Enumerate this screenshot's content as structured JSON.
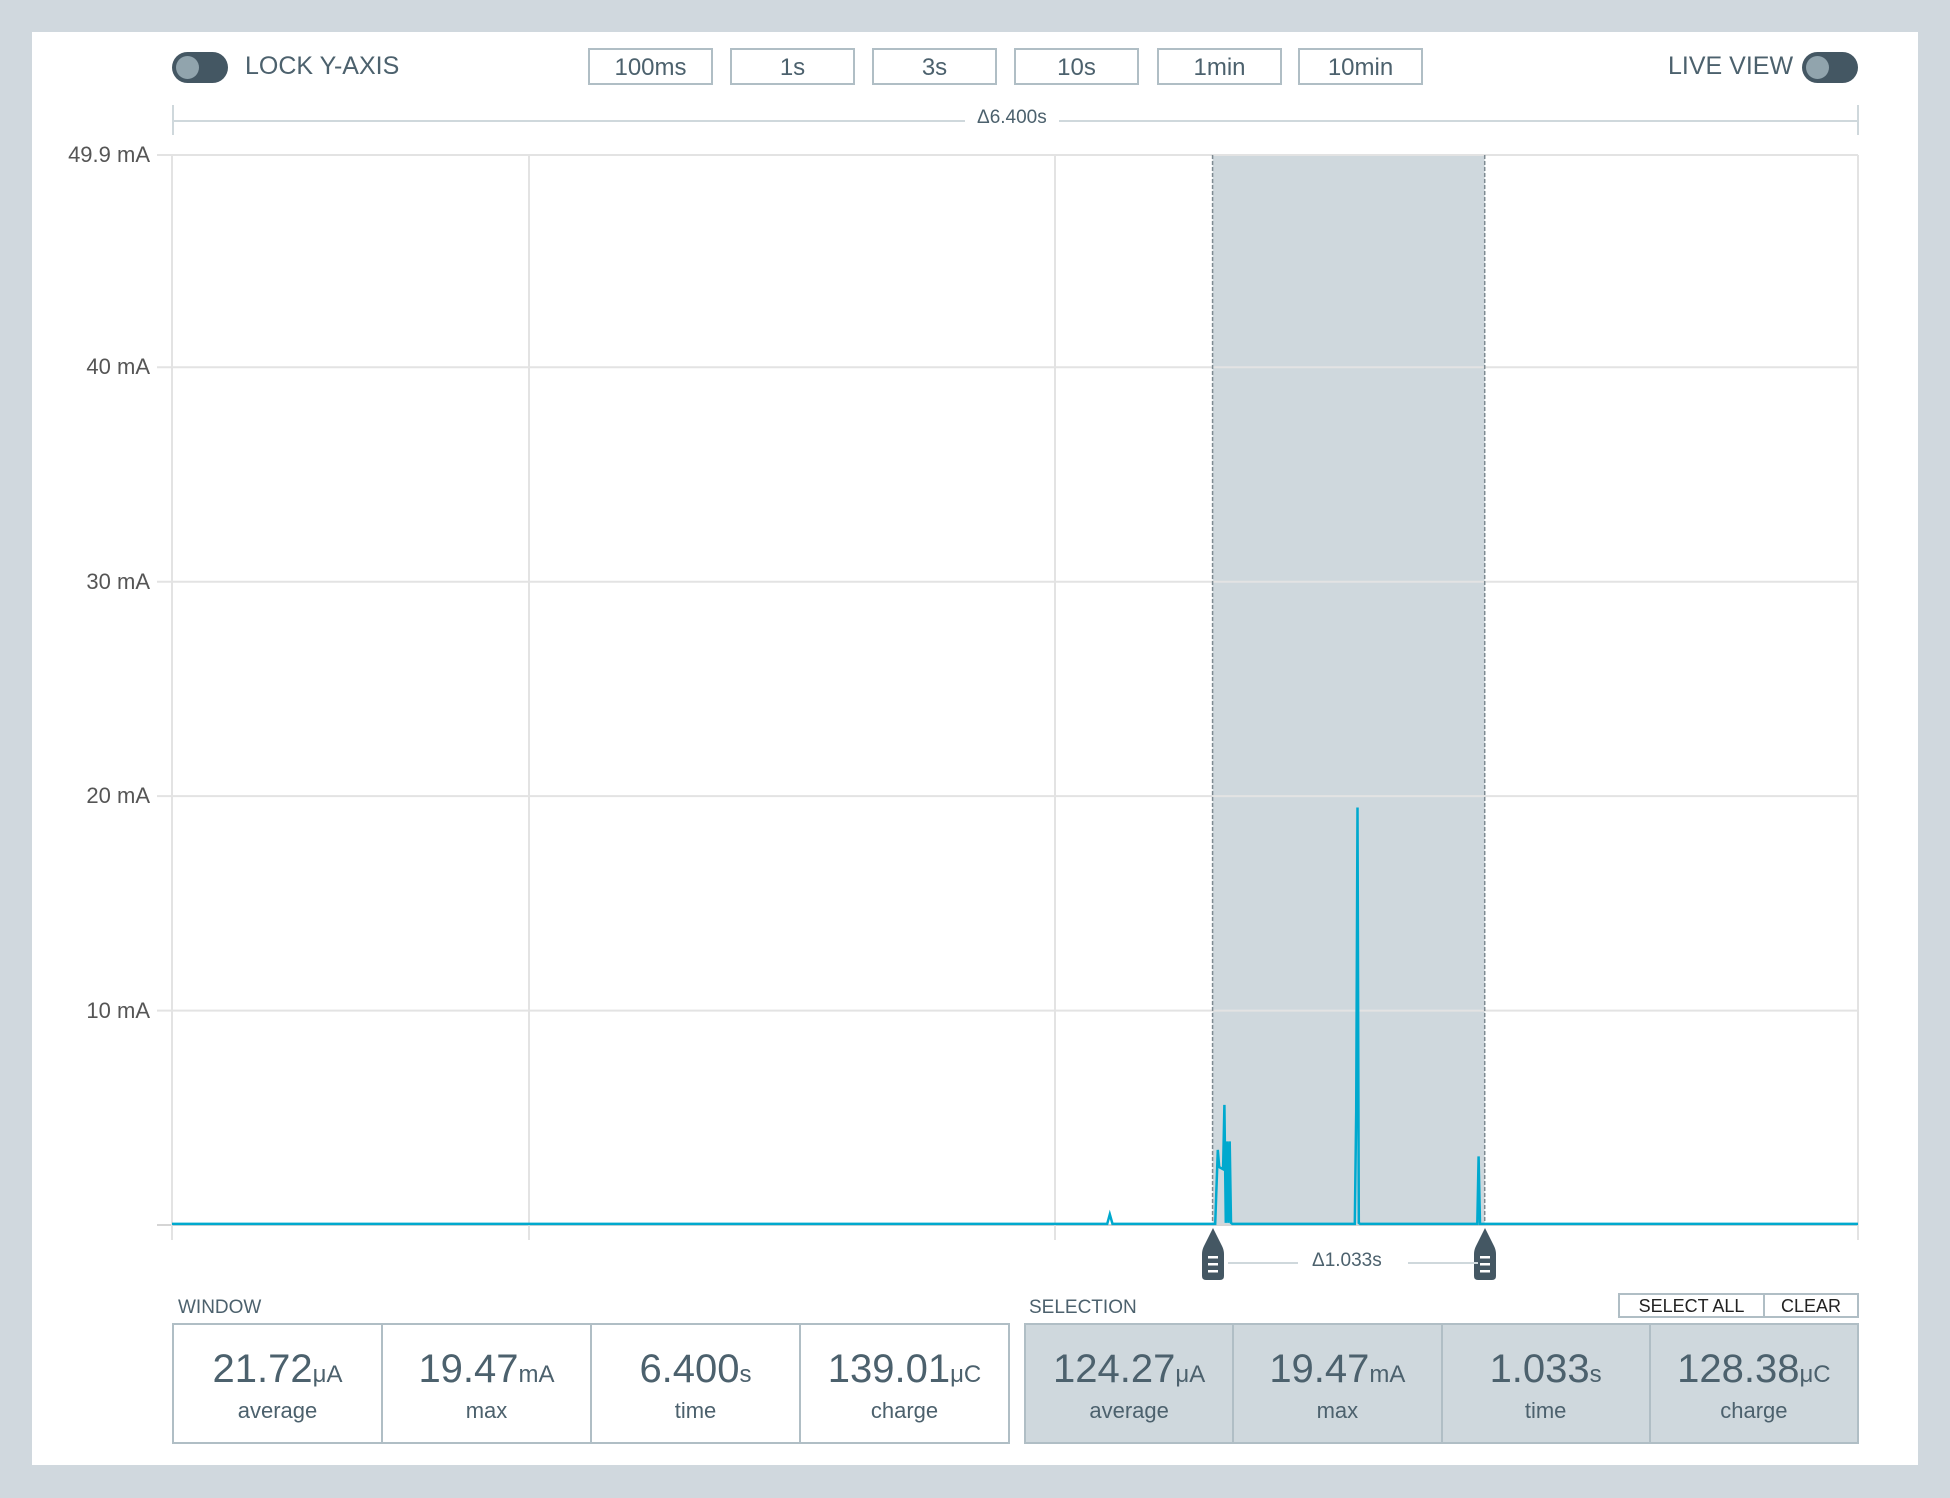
{
  "toolbar": {
    "lock_y_axis_label": "LOCK Y-AXIS",
    "lock_y_axis_on": false,
    "live_view_label": "LIVE VIEW",
    "live_view_on": false,
    "window_buttons": [
      "100ms",
      "1s",
      "3s",
      "10s",
      "1min",
      "10min"
    ]
  },
  "window_span_label": "Δ6.400s",
  "selection_span_label": "Δ1.033s",
  "colors": {
    "trace": "#00a9ce",
    "selection": "#cfd8dd",
    "handle": "#445763",
    "background": "#d0d8de"
  },
  "chart_data": {
    "type": "line",
    "ylabel_unit": "mA",
    "y_ticks": [
      "49.9 mA",
      "40 mA",
      "30 mA",
      "20 mA",
      "10 mA"
    ],
    "ylim": [
      0,
      49.9
    ],
    "xlim_s": [
      0,
      6.4
    ],
    "grid": true,
    "selection_s": [
      3.95,
      4.983
    ],
    "series": [
      {
        "x": [
          0,
          3.55,
          3.56,
          3.57,
          3.96,
          3.97,
          3.975,
          3.99,
          3.995,
          4.0,
          4.005,
          4.01,
          4.015,
          4.02,
          4.025,
          4.03,
          4.035,
          4.04,
          4.49,
          4.495,
          4.5,
          4.505,
          4.51,
          4.955,
          4.96,
          4.965,
          6.4
        ],
        "y": [
          0.05,
          0.05,
          0.5,
          0.05,
          0.05,
          3.5,
          2.7,
          2.6,
          5.6,
          0.1,
          3.9,
          0.1,
          3.9,
          0.1,
          0.05,
          0.05,
          0.05,
          0.05,
          0.05,
          5.3,
          19.47,
          0.1,
          0.05,
          0.05,
          3.2,
          0.05,
          0.05
        ]
      }
    ]
  },
  "window": {
    "label": "WINDOW",
    "stats": [
      {
        "value": "21.72",
        "unit": "μA",
        "label": "average"
      },
      {
        "value": "19.47",
        "unit": "mA",
        "label": "max"
      },
      {
        "value": "6.400",
        "unit": "s",
        "label": "time"
      },
      {
        "value": "139.01",
        "unit": "μC",
        "label": "charge"
      }
    ]
  },
  "selection": {
    "label": "SELECTION",
    "select_all_label": "SELECT ALL",
    "clear_label": "CLEAR",
    "stats": [
      {
        "value": "124.27",
        "unit": "μA",
        "label": "average"
      },
      {
        "value": "19.47",
        "unit": "mA",
        "label": "max"
      },
      {
        "value": "1.033",
        "unit": "s",
        "label": "time"
      },
      {
        "value": "128.38",
        "unit": "μC",
        "label": "charge"
      }
    ]
  }
}
